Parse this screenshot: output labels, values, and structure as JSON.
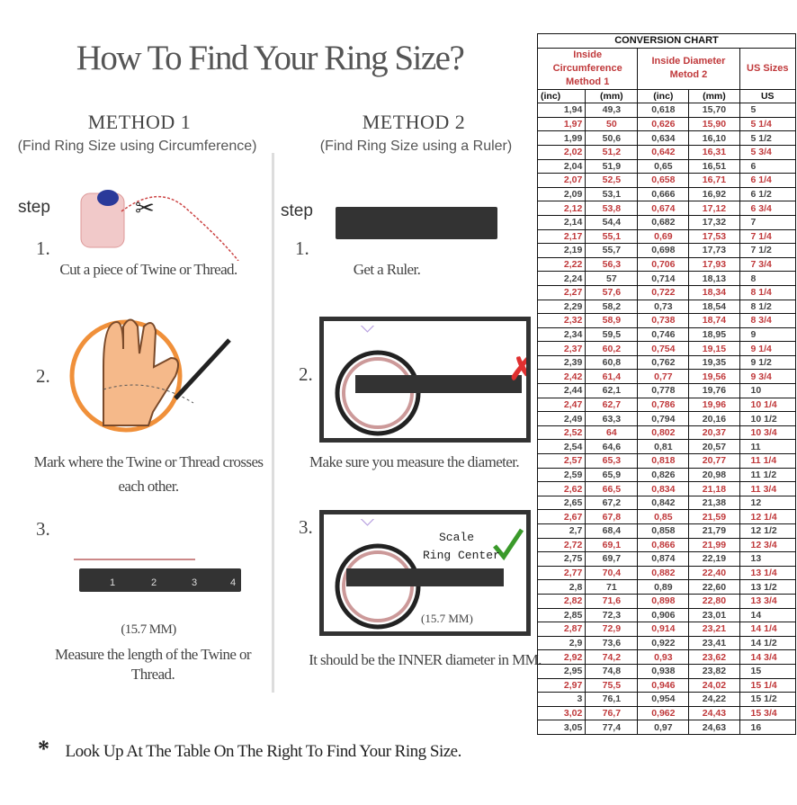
{
  "title": "How To Find Your Ring Size?",
  "method1": {
    "heading": "METHOD 1",
    "subheading": "(Find Ring Size using Circumference)",
    "step_label": "step",
    "steps": [
      {
        "n": "1.",
        "text": "Cut a piece of  Twine or Thread."
      },
      {
        "n": "2.",
        "text": "Mark where the Twine or Thread crosses each other."
      },
      {
        "n": "3.",
        "text": "Measure the length of the Twine or Thread.",
        "measure": "(15.7 MM)"
      }
    ]
  },
  "method2": {
    "heading": "METHOD 2",
    "subheading": "(Find Ring Size using a Ruler)",
    "step_label": "step",
    "steps": [
      {
        "n": "1.",
        "text": "Get a Ruler."
      },
      {
        "n": "2.",
        "text": "Make sure you measure the diameter."
      },
      {
        "n": "3.",
        "text": "It should be the INNER diameter in MM.",
        "measure": "(15.7 MM)",
        "note_line1": "Scale",
        "note_line2": "Ring Center"
      }
    ]
  },
  "ruler_ticks": [
    "1",
    "2",
    "3",
    "4"
  ],
  "footnote": {
    "symbol": "*",
    "text": "Look Up At The Table On The Right To Find Your Ring Size."
  },
  "colors": {
    "accent_red": "#c0393b",
    "ruler": "#333333",
    "check_green": "#3a9a2a",
    "cross_red": "#e03030"
  },
  "table": {
    "title": "CONVERSION CHART",
    "group1_line1": "Inside Circumference",
    "group1_line2": "Method 1",
    "group2_line1": "Inside Diameter",
    "group2_line2": "Metod 2",
    "group3": "US Sizes",
    "units": [
      "(inc)",
      "(mm)",
      "(inc)",
      "(mm)",
      "US"
    ],
    "rows": [
      [
        "1,94",
        "49,3",
        "0,618",
        "15,70",
        "5"
      ],
      [
        "1,97",
        "50",
        "0,626",
        "15,90",
        "5 1/4"
      ],
      [
        "1,99",
        "50,6",
        "0,634",
        "16,10",
        "5 1/2"
      ],
      [
        "2,02",
        "51,2",
        "0,642",
        "16,31",
        "5 3/4"
      ],
      [
        "2,04",
        "51,9",
        "0,65",
        "16,51",
        "6"
      ],
      [
        "2,07",
        "52,5",
        "0,658",
        "16,71",
        "6 1/4"
      ],
      [
        "2,09",
        "53,1",
        "0,666",
        "16,92",
        "6 1/2"
      ],
      [
        "2,12",
        "53,8",
        "0,674",
        "17,12",
        "6 3/4"
      ],
      [
        "2,14",
        "54,4",
        "0,682",
        "17,32",
        "7"
      ],
      [
        "2,17",
        "55,1",
        "0,69",
        "17,53",
        "7 1/4"
      ],
      [
        "2,19",
        "55,7",
        "0,698",
        "17,73",
        "7 1/2"
      ],
      [
        "2,22",
        "56,3",
        "0,706",
        "17,93",
        "7 3/4"
      ],
      [
        "2,24",
        "57",
        "0,714",
        "18,13",
        "8"
      ],
      [
        "2,27",
        "57,6",
        "0,722",
        "18,34",
        "8 1/4"
      ],
      [
        "2,29",
        "58,2",
        "0,73",
        "18,54",
        "8 1/2"
      ],
      [
        "2,32",
        "58,9",
        "0,738",
        "18,74",
        "8 3/4"
      ],
      [
        "2,34",
        "59,5",
        "0,746",
        "18,95",
        "9"
      ],
      [
        "2,37",
        "60,2",
        "0,754",
        "19,15",
        "9 1/4"
      ],
      [
        "2,39",
        "60,8",
        "0,762",
        "19,35",
        "9 1/2"
      ],
      [
        "2,42",
        "61,4",
        "0,77",
        "19,56",
        "9 3/4"
      ],
      [
        "2,44",
        "62,1",
        "0,778",
        "19,76",
        "10"
      ],
      [
        "2,47",
        "62,7",
        "0,786",
        "19,96",
        "10 1/4"
      ],
      [
        "2,49",
        "63,3",
        "0,794",
        "20,16",
        "10 1/2"
      ],
      [
        "2,52",
        "64",
        "0,802",
        "20,37",
        "10 3/4"
      ],
      [
        "2,54",
        "64,6",
        "0,81",
        "20,57",
        "11"
      ],
      [
        "2,57",
        "65,3",
        "0,818",
        "20,77",
        "11 1/4"
      ],
      [
        "2,59",
        "65,9",
        "0,826",
        "20,98",
        "11 1/2"
      ],
      [
        "2,62",
        "66,5",
        "0,834",
        "21,18",
        "11 3/4"
      ],
      [
        "2,65",
        "67,2",
        "0,842",
        "21,38",
        "12"
      ],
      [
        "2,67",
        "67,8",
        "0,85",
        "21,59",
        "12 1/4"
      ],
      [
        "2,7",
        "68,4",
        "0,858",
        "21,79",
        "12 1/2"
      ],
      [
        "2,72",
        "69,1",
        "0,866",
        "21,99",
        "12 3/4"
      ],
      [
        "2,75",
        "69,7",
        "0,874",
        "22,19",
        "13"
      ],
      [
        "2,77",
        "70,4",
        "0,882",
        "22,40",
        "13 1/4"
      ],
      [
        "2,8",
        "71",
        "0,89",
        "22,60",
        "13 1/2"
      ],
      [
        "2,82",
        "71,6",
        "0,898",
        "22,80",
        "13 3/4"
      ],
      [
        "2,85",
        "72,3",
        "0,906",
        "23,01",
        "14"
      ],
      [
        "2,87",
        "72,9",
        "0,914",
        "23,21",
        "14 1/4"
      ],
      [
        "2,9",
        "73,6",
        "0,922",
        "23,41",
        "14 1/2"
      ],
      [
        "2,92",
        "74,2",
        "0,93",
        "23,62",
        "14 3/4"
      ],
      [
        "2,95",
        "74,8",
        "0,938",
        "23,82",
        "15"
      ],
      [
        "2,97",
        "75,5",
        "0,946",
        "24,02",
        "15 1/4"
      ],
      [
        "3",
        "76,1",
        "0,954",
        "24,22",
        "15 1/2"
      ],
      [
        "3,02",
        "76,7",
        "0,962",
        "24,43",
        "15 3/4"
      ],
      [
        "3,05",
        "77,4",
        "0,97",
        "24,63",
        "16"
      ]
    ]
  }
}
